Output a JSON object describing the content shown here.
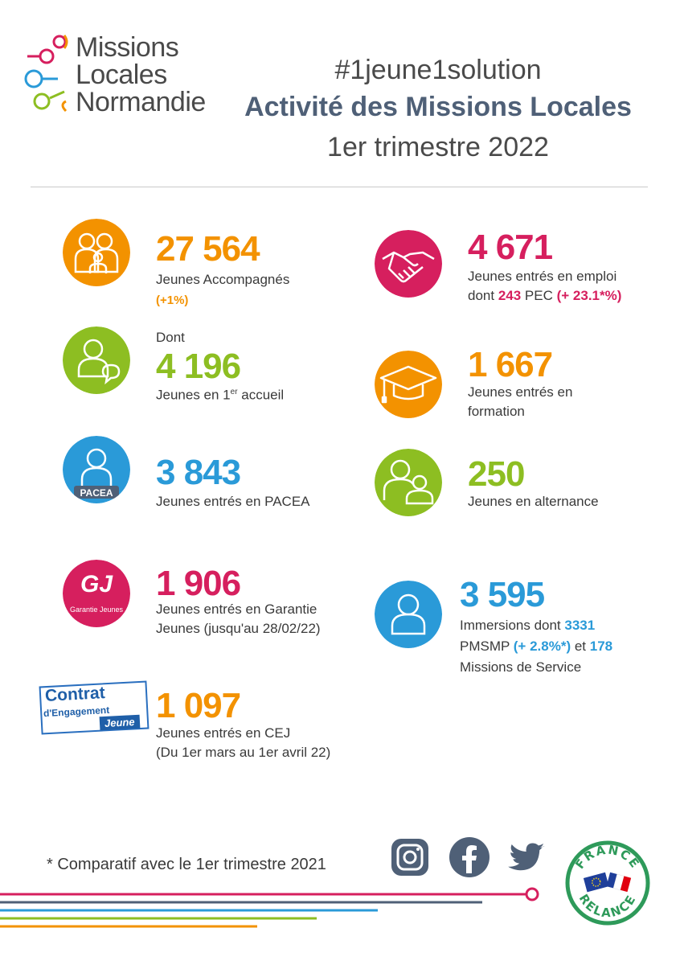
{
  "header": {
    "logo_lines": [
      "Missions",
      "Locales",
      "Normandie"
    ],
    "hashtag": "#1jeune1solution",
    "title": "Activité des Missions Locales",
    "subtitle": "1er trimestre 2022"
  },
  "colors": {
    "orange": "#f39200",
    "green": "#8dbe22",
    "blue": "#2a9ad8",
    "pink": "#d61f5e",
    "slate": "#4f6077"
  },
  "stats": {
    "accompagnes": {
      "value": "27 564",
      "label": "Jeunes Accompagnés",
      "delta": "(+1%)",
      "icon": "family-icon"
    },
    "premier_accueil": {
      "prefix": "Dont",
      "value": "4 196",
      "label_before": "Jeunes en 1",
      "label_sup": "er",
      "label_after": " accueil",
      "icon": "person-speech-icon"
    },
    "pacea": {
      "value": "3 843",
      "label": "Jeunes entrés en PACEA",
      "badge": "PACEA",
      "icon": "person-pacea-icon"
    },
    "garantie": {
      "value": "1 906",
      "label_line1": "Jeunes entrés en Garantie",
      "label_line2": "Jeunes (jusqu'au 28/02/22)",
      "logo_letters": "GJ",
      "logo_caption": "Garantie Jeunes",
      "icon": "garantie-jeunes-logo"
    },
    "cej": {
      "value": "1 097",
      "label_line1": "Jeunes entrés en CEJ",
      "label_line2": "(Du 1er mars au 1er avril 22)",
      "logo_line1": "Contrat",
      "logo_line2": "d'Engagement",
      "logo_line3": "Jeune",
      "icon": "contrat-engagement-jeune-logo"
    },
    "emploi": {
      "value": "4 671",
      "label": "Jeunes entrés en emploi",
      "dont": "dont ",
      "pec_value": "243",
      "pec_label": " PEC ",
      "pec_delta": "(+ 23.1*%)",
      "icon": "handshake-icon"
    },
    "formation": {
      "value": "1 667",
      "label_line1": "Jeunes entrés en",
      "label_line2": "formation",
      "icon": "graduation-cap-icon"
    },
    "alternance": {
      "value": "250",
      "label": "Jeunes en alternance",
      "icon": "two-persons-icon"
    },
    "immersions": {
      "value": "3 595",
      "line1_text": "Immersions dont ",
      "line1_value": "3331",
      "line2_text": "PMSMP ",
      "line2_delta": "(+ 2.8%*)",
      "line2_mid": " et ",
      "line2_value": "178",
      "line3_text": "Missions de Service",
      "icon": "person-icon"
    }
  },
  "footer": {
    "footnote": "* Comparatif avec le 1er trimestre 2021",
    "social": [
      "instagram-icon",
      "facebook-icon",
      "twitter-icon"
    ],
    "relance_top": "FRANCE",
    "relance_bottom": "RELANCE"
  }
}
